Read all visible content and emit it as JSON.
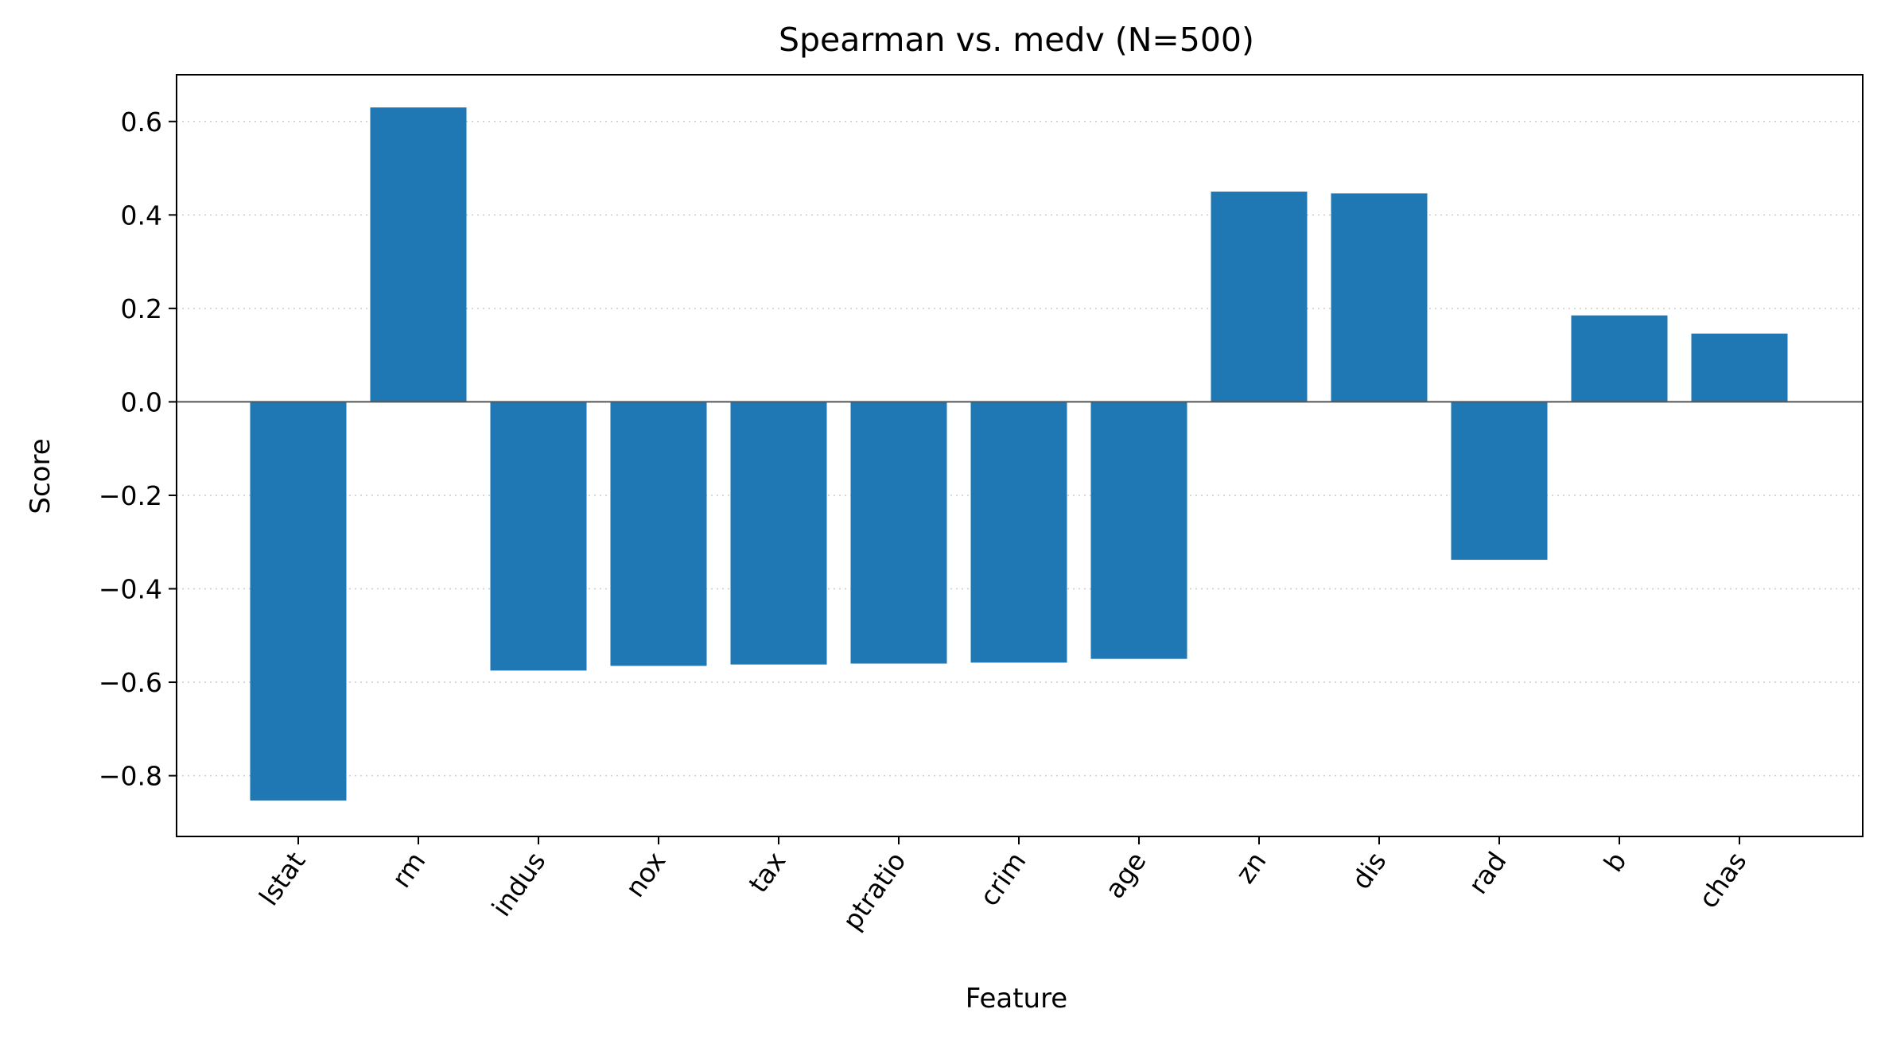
{
  "chart_data": {
    "type": "bar",
    "title": "Spearman vs. medv  (N=500)",
    "xlabel": "Feature",
    "ylabel": "Score",
    "categories": [
      "lstat",
      "rm",
      "indus",
      "nox",
      "tax",
      "ptratio",
      "crim",
      "age",
      "zn",
      "dis",
      "rad",
      "b",
      "chas"
    ],
    "values": [
      -0.853,
      0.63,
      -0.575,
      -0.565,
      -0.562,
      -0.56,
      -0.558,
      -0.55,
      0.45,
      0.446,
      -0.338,
      0.185,
      0.146
    ],
    "ylim": [
      -0.93,
      0.7
    ],
    "yticks": [
      -0.8,
      -0.6,
      -0.4,
      -0.2,
      0.0,
      0.2,
      0.4,
      0.6
    ],
    "ytick_labels": [
      "−0.8",
      "−0.6",
      "−0.4",
      "−0.2",
      "0.0",
      "0.2",
      "0.4",
      "0.6"
    ],
    "grid": "y-dotted",
    "bar_color": "#1f77b4"
  }
}
